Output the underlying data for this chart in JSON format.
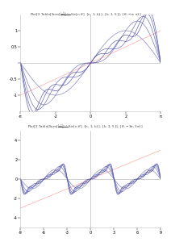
{
  "title1": "Plot[Table[Sum[∑ ⁻¹ⁿ⁺¹ Sin[n θ], {n,1,k}], {k,1,5}], {θ,-π,π}]",
  "title2": "Plot[Table[Sum[∑ ⁻¹ⁿ⁺¹ Sin[n θ], {n,1,k}], {k,1,5}], {θ,-3π,3π}]",
  "k_values": [
    1,
    2,
    3,
    4,
    5
  ],
  "colors": [
    "#6666cc",
    "#7777bb",
    "#8888cc",
    "#9999bb",
    "#aaaacc"
  ],
  "line_color": "#5555aa",
  "diagonal_color": "#ffaaaa",
  "plot1_xlim": [
    -3.14159265,
    3.14159265
  ],
  "plot1_ylim": [
    -1.5,
    1.5
  ],
  "plot2_xlim": [
    -9.42477796,
    9.42477796
  ],
  "plot2_ylim": [
    -5.0,
    5.0
  ],
  "bg_color": "#ffffff",
  "n_points": 1000
}
